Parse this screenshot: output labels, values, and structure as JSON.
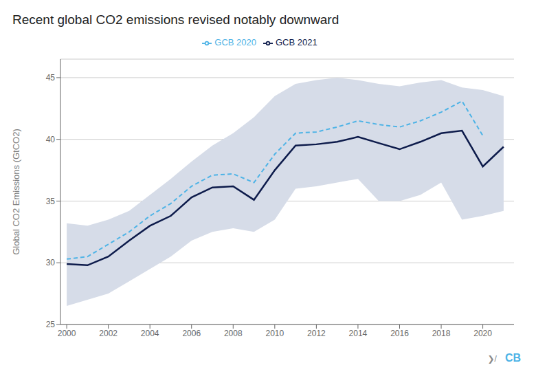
{
  "chart_data": {
    "type": "line",
    "title": "Recent global CO2 emissions revised notably downward",
    "ylabel": "Global CO2 Emissions (GtCO2)",
    "xlim": [
      1999.7,
      2021.5
    ],
    "xticks": [
      2000,
      2002,
      2004,
      2006,
      2008,
      2010,
      2012,
      2014,
      2016,
      2018,
      2020
    ],
    "ylim": [
      25,
      46.5
    ],
    "yticks": [
      25,
      30,
      35,
      40,
      45
    ],
    "grid": true,
    "legend": "top",
    "series": [
      {
        "name": "GCB 2020",
        "color": "#4db3e6",
        "line_style": "dashed",
        "x": [
          2000,
          2001,
          2002,
          2003,
          2004,
          2005,
          2006,
          2007,
          2008,
          2009,
          2010,
          2011,
          2012,
          2013,
          2014,
          2015,
          2016,
          2017,
          2018,
          2019,
          2020
        ],
        "values": [
          30.3,
          30.5,
          31.5,
          32.5,
          33.8,
          34.8,
          36.2,
          37.1,
          37.2,
          36.5,
          38.8,
          40.5,
          40.6,
          41.0,
          41.5,
          41.2,
          41.0,
          41.5,
          42.2,
          43.1,
          40.3
        ]
      },
      {
        "name": "GCB 2021",
        "color": "#0d1b4b",
        "line_style": "solid",
        "x": [
          2000,
          2001,
          2002,
          2003,
          2004,
          2005,
          2006,
          2007,
          2008,
          2009,
          2010,
          2011,
          2012,
          2013,
          2014,
          2015,
          2016,
          2017,
          2018,
          2019,
          2020,
          2021
        ],
        "values": [
          29.9,
          29.8,
          30.5,
          31.8,
          33.0,
          33.8,
          35.3,
          36.1,
          36.2,
          35.1,
          37.5,
          39.5,
          39.6,
          39.8,
          40.2,
          39.7,
          39.2,
          39.8,
          40.5,
          40.7,
          37.8,
          39.4
        ]
      }
    ],
    "band": {
      "color": "#d6dce8",
      "x": [
        2000,
        2001,
        2002,
        2003,
        2004,
        2005,
        2006,
        2007,
        2008,
        2009,
        2010,
        2011,
        2012,
        2013,
        2014,
        2015,
        2016,
        2017,
        2018,
        2019,
        2020,
        2021
      ],
      "lower": [
        26.5,
        27.0,
        27.5,
        28.5,
        29.5,
        30.5,
        31.8,
        32.5,
        32.8,
        32.5,
        33.5,
        36.0,
        36.2,
        36.5,
        36.8,
        35.0,
        35.0,
        35.5,
        36.5,
        33.5,
        33.8,
        34.2
      ],
      "upper": [
        33.2,
        33.0,
        33.5,
        34.2,
        35.5,
        36.8,
        38.2,
        39.5,
        40.5,
        41.8,
        43.5,
        44.5,
        44.8,
        45.0,
        44.8,
        44.5,
        44.3,
        44.6,
        44.8,
        44.2,
        44.0,
        43.5
      ]
    },
    "annotations": [
      "❯/",
      "CB"
    ]
  }
}
